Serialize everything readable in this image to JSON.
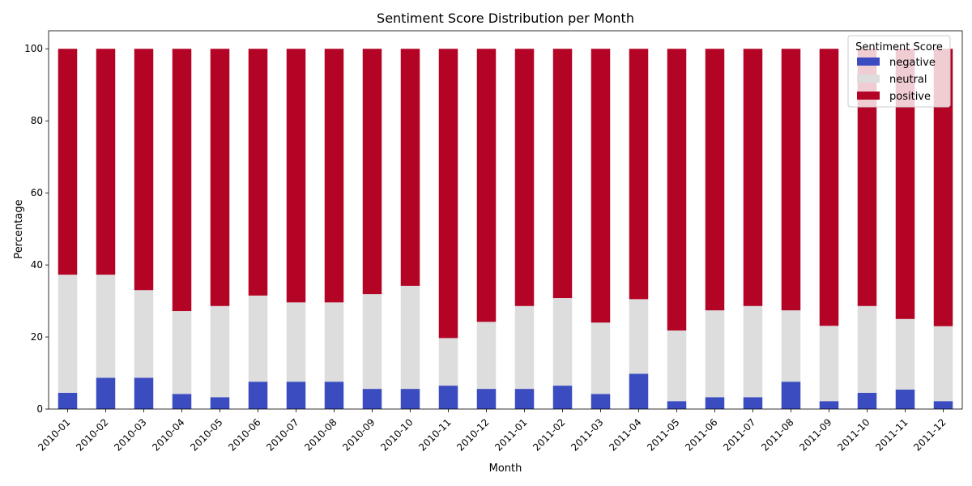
{
  "chart_data": {
    "type": "bar",
    "stacked": true,
    "title": "Sentiment Score Distribution per Month",
    "xlabel": "Month",
    "ylabel": "Percentage",
    "ylim": [
      0,
      105
    ],
    "yticks": [
      0,
      20,
      40,
      60,
      80,
      100
    ],
    "grid": false,
    "legend": {
      "title": "Sentiment Score",
      "placement": "top-right"
    },
    "categories": [
      "2010-01",
      "2010-02",
      "2010-03",
      "2010-04",
      "2010-05",
      "2010-06",
      "2010-07",
      "2010-08",
      "2010-09",
      "2010-10",
      "2010-11",
      "2010-12",
      "2011-01",
      "2011-02",
      "2011-03",
      "2011-04",
      "2011-05",
      "2011-06",
      "2011-07",
      "2011-08",
      "2011-09",
      "2011-10",
      "2011-11",
      "2011-12"
    ],
    "series": [
      {
        "name": "negative",
        "color": "#3b4cc0",
        "values": [
          4.5,
          8.7,
          8.7,
          4.2,
          3.3,
          7.6,
          7.6,
          7.6,
          5.6,
          5.6,
          6.5,
          5.6,
          5.6,
          6.5,
          4.2,
          9.8,
          2.2,
          3.3,
          3.3,
          7.6,
          2.2,
          4.5,
          5.4,
          2.2
        ]
      },
      {
        "name": "neutral",
        "color": "#dddddd",
        "values": [
          32.8,
          28.6,
          24.3,
          23.0,
          25.3,
          23.9,
          22.0,
          22.0,
          26.3,
          28.6,
          13.2,
          18.6,
          23.0,
          24.3,
          19.8,
          20.7,
          19.6,
          24.1,
          25.3,
          19.8,
          20.9,
          24.1,
          19.6,
          20.8
        ]
      },
      {
        "name": "positive",
        "color": "#b40426",
        "values": [
          62.7,
          62.7,
          67.0,
          72.8,
          71.4,
          68.5,
          70.4,
          70.4,
          68.1,
          65.8,
          80.3,
          75.8,
          71.4,
          69.2,
          76.0,
          69.5,
          78.2,
          72.6,
          71.4,
          72.6,
          76.9,
          71.4,
          75.0,
          77.0
        ]
      }
    ]
  }
}
